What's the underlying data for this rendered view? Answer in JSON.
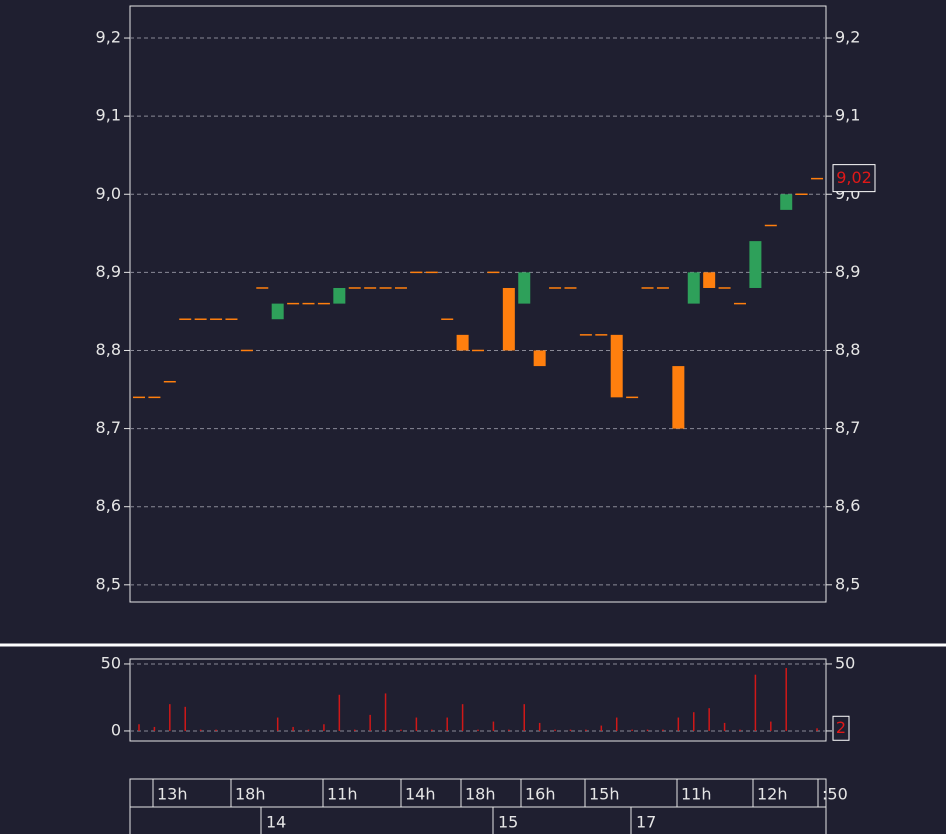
{
  "chart_data": [
    {
      "type": "candlestick",
      "open": [
        8.74,
        8.74,
        8.76,
        8.84,
        8.84,
        8.84,
        8.84,
        8.8,
        8.88,
        8.84,
        8.86,
        8.86,
        8.86,
        8.86,
        8.88,
        8.88,
        8.88,
        8.88,
        8.9,
        8.9,
        8.84,
        8.82,
        8.8,
        8.9,
        8.88,
        8.86,
        8.8,
        8.88,
        8.88,
        8.82,
        8.82,
        8.82,
        8.74,
        8.88,
        8.88,
        8.78,
        8.86,
        8.9,
        8.88,
        8.86,
        8.88,
        8.96,
        8.98,
        9.0,
        9.02
      ],
      "close": [
        8.74,
        8.74,
        8.76,
        8.84,
        8.84,
        8.84,
        8.84,
        8.8,
        8.88,
        8.86,
        8.86,
        8.86,
        8.86,
        8.88,
        8.88,
        8.88,
        8.88,
        8.88,
        8.9,
        8.9,
        8.84,
        8.8,
        8.8,
        8.9,
        8.8,
        8.9,
        8.78,
        8.88,
        8.88,
        8.82,
        8.82,
        8.74,
        8.74,
        8.88,
        8.88,
        8.7,
        8.9,
        8.88,
        8.88,
        8.86,
        8.94,
        8.96,
        9.0,
        9.0,
        9.02
      ],
      "up_color": "#2ea05a",
      "down_color": "#ff7f0e",
      "ylim": [
        8.478,
        9.241
      ],
      "yticks": [
        {
          "value": 8.5,
          "label": "8,5"
        },
        {
          "value": 8.6,
          "label": "8,6"
        },
        {
          "value": 8.7,
          "label": "8,7"
        },
        {
          "value": 8.8,
          "label": "8,8"
        },
        {
          "value": 8.9,
          "label": "8,9"
        },
        {
          "value": 9.0,
          "label": "9,0"
        },
        {
          "value": 9.1,
          "label": "9,1"
        },
        {
          "value": 9.2,
          "label": "9,2"
        }
      ],
      "grid": true,
      "last_price": {
        "value": 9.02,
        "label": "9,02"
      },
      "time_labels": [
        "13h",
        "18h",
        "11h",
        "14h",
        "18h",
        "16h",
        "15h",
        "11h",
        "12h",
        ":50"
      ],
      "date_labels": [
        "14",
        "15",
        "17"
      ]
    },
    {
      "type": "bar",
      "values": [
        5,
        3,
        20,
        18,
        1,
        1,
        0,
        0,
        0,
        10,
        3,
        1,
        5,
        27,
        1,
        12,
        28,
        1,
        10,
        1,
        10,
        20,
        1,
        7,
        1,
        20,
        6,
        1,
        1,
        1,
        4,
        10,
        1,
        1,
        1,
        10,
        14,
        17,
        6,
        1,
        42,
        7,
        47,
        0,
        2
      ],
      "color": "#d01818",
      "ylim": [
        -7.5,
        53.7
      ],
      "yticks": [
        0,
        50
      ],
      "grid": true,
      "last_volume": 2
    }
  ]
}
